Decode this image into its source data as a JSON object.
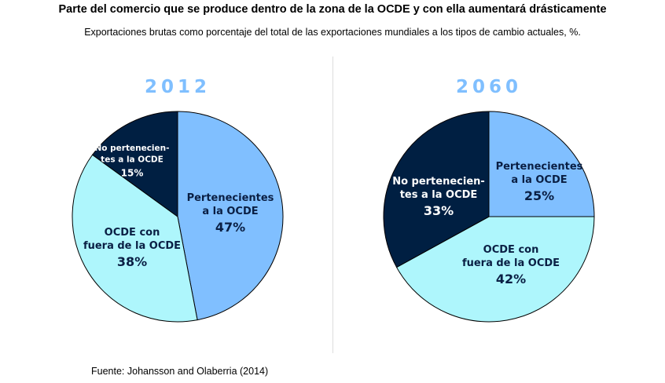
{
  "title": "Parte del comercio que se produce dentro de la zona de la OCDE y con ella aumentará drásticamente",
  "subtitle": "Exportaciones brutas como porcentaje del total de las exportaciones mundiales a los tipos de cambio actuales, %.",
  "source": "Fuente: Johansson and Olaberria (2014)",
  "chart_data": [
    {
      "type": "pie",
      "title": "2012",
      "slices": [
        {
          "label": [
            "Pertenecientes",
            "a la OCDE"
          ],
          "value": 47,
          "value_label": "47%",
          "color": "#80bfff",
          "text_color": "#0a1f44"
        },
        {
          "label": [
            "OCDE con",
            "fuera de la OCDE"
          ],
          "value": 38,
          "value_label": "38%",
          "color": "#aef6fc",
          "text_color": "#0a1f44"
        },
        {
          "label": [
            "No pertenecien-",
            "tes a la OCDE"
          ],
          "value": 15,
          "value_label": "15%",
          "color": "#001f42",
          "text_color": "#ffffff"
        }
      ]
    },
    {
      "type": "pie",
      "title": "2060",
      "slices": [
        {
          "label": [
            "Pertenecientes",
            "a la OCDE"
          ],
          "value": 25,
          "value_label": "25%",
          "color": "#80bfff",
          "text_color": "#0a1f44"
        },
        {
          "label": [
            "OCDE con",
            "fuera de la OCDE"
          ],
          "value": 42,
          "value_label": "42%",
          "color": "#aef6fc",
          "text_color": "#0a1f44"
        },
        {
          "label": [
            "No pertenecien-",
            "tes a la OCDE"
          ],
          "value": 33,
          "value_label": "33%",
          "color": "#001f42",
          "text_color": "#ffffff"
        }
      ]
    }
  ]
}
